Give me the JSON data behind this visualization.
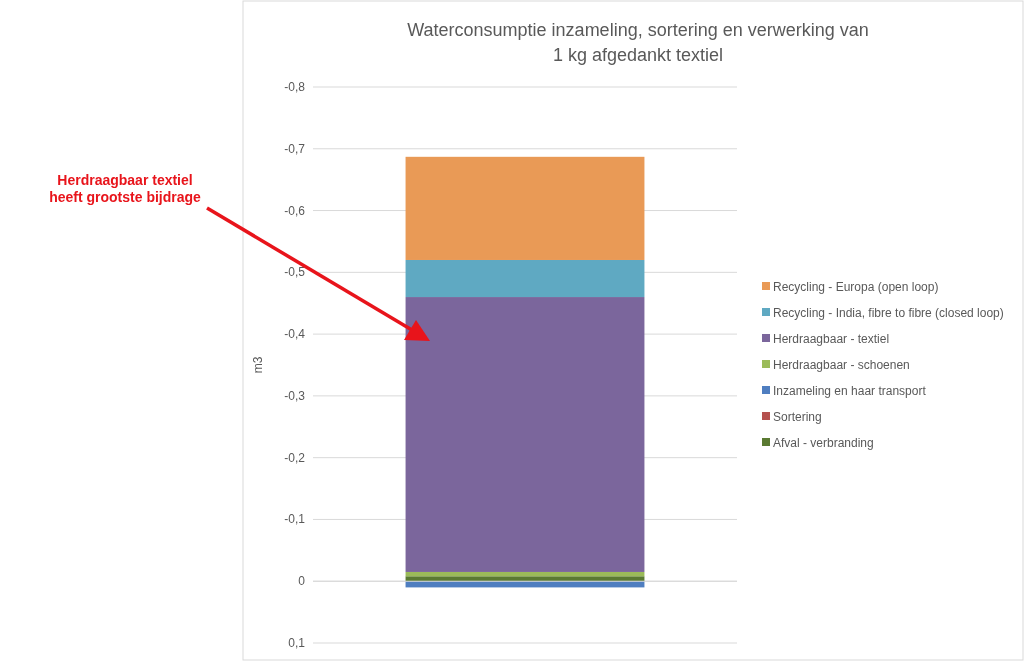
{
  "chart_data": {
    "type": "bar",
    "stacked": true,
    "title": "Waterconsumptie inzameling, sortering en verwerking van 1 kg afgedankt textiel",
    "ylabel": "m3",
    "annotations": [
      "Herdraagbaar textiel\nheeft grootste bijdrage"
    ],
    "categories": [
      null
    ],
    "series": [
      {
        "name": "Afval - verbranding",
        "color": "#5a7a32",
        "values": [
          -0.008
        ]
      },
      {
        "name": "Sortering",
        "color": "#b5514e",
        "values": [
          0
        ]
      },
      {
        "name": "Inzameling en haar transport",
        "color": "#4f7ec0",
        "values": [
          0.01
        ]
      },
      {
        "name": "Herdraagbaar - schoenen",
        "color": "#9bbb59",
        "values": [
          -0.007
        ]
      },
      {
        "name": "Herdraagbaar - textiel",
        "color": "#7b669c",
        "values": [
          -0.445
        ]
      },
      {
        "name": "Recycling - India, fibre to fibre (closed loop)",
        "color": "#5fa9c2",
        "values": [
          -0.06
        ]
      },
      {
        "name": "Recycling - Europa (open loop)",
        "color": "#e99a56",
        "values": [
          -0.167
        ]
      }
    ],
    "ylim": [
      0.1,
      -0.8
    ],
    "yticks": [
      {
        "value": -0.8,
        "label": "-0,8"
      },
      {
        "value": -0.7,
        "label": "-0,7"
      },
      {
        "value": -0.6,
        "label": "-0,6"
      },
      {
        "value": -0.5,
        "label": "-0,5"
      },
      {
        "value": -0.4,
        "label": "-0,4"
      },
      {
        "value": -0.3,
        "label": "-0,3"
      },
      {
        "value": -0.2,
        "label": "-0,2"
      },
      {
        "value": -0.1,
        "label": "-0,1"
      },
      0,
      {
        "value": 0.1,
        "label": "0,1"
      }
    ],
    "grid": "y",
    "legend": "right"
  }
}
